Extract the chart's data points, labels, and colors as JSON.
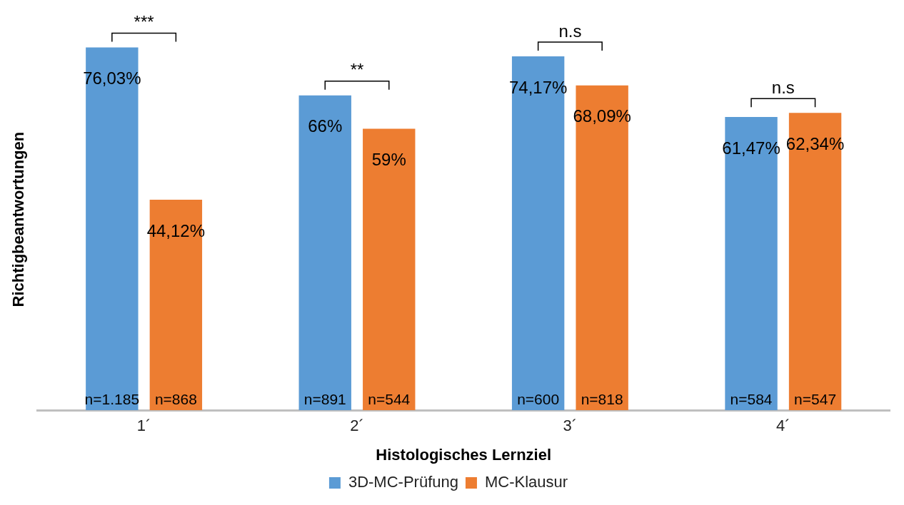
{
  "chart_data": {
    "type": "bar",
    "xlabel": "Histologisches Lernziel",
    "ylabel": "Richtigbeantwortungen",
    "categories": [
      "1´",
      "2´",
      "3´",
      "4´"
    ],
    "series": [
      {
        "name": "3D-MC-Prüfung",
        "color": "#5b9bd5",
        "values": [
          76.03,
          66,
          74.17,
          61.47
        ],
        "value_labels": [
          "76,03%",
          "66%",
          "74,17%",
          "61,47%"
        ]
      },
      {
        "name": "MC-Klausur",
        "color": "#ed7d31",
        "values": [
          44.12,
          59,
          68.09,
          62.34
        ],
        "value_labels": [
          "44,12%",
          "59%",
          "68,09%",
          "62,34%"
        ]
      }
    ],
    "annotations": [
      "***",
      "**",
      "n.s",
      "n.s",
      "n=1.185",
      "n=868",
      "n=891",
      "n=544",
      "n=600",
      "n=818",
      "n=584",
      "n=547"
    ],
    "legend": "bottom",
    "grid": false
  }
}
